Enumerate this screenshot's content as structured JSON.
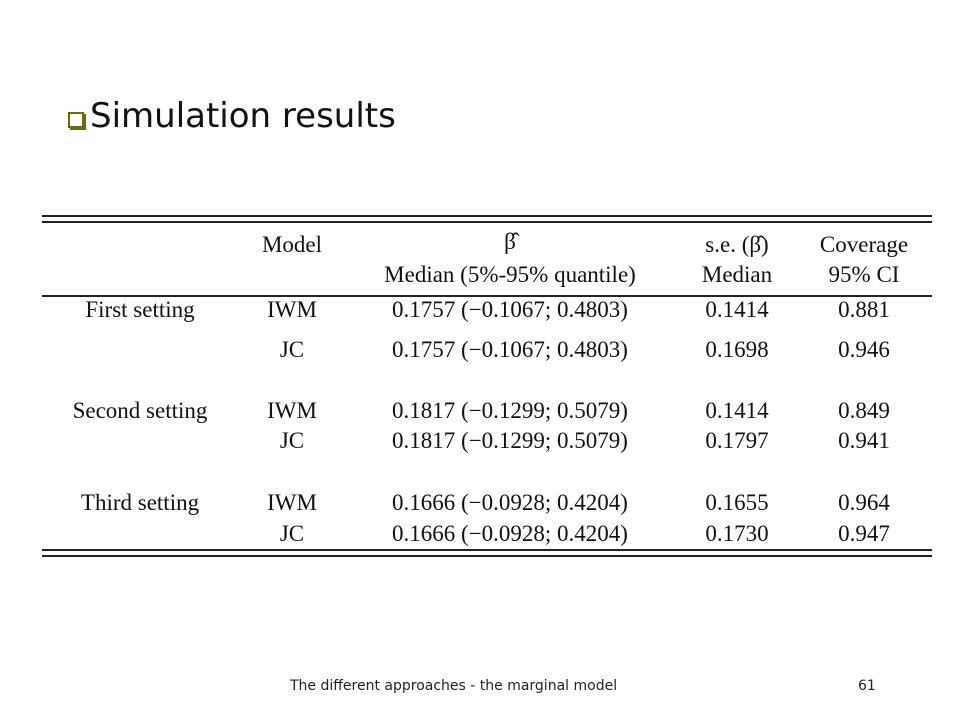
{
  "header": {
    "title": "Simulation results"
  },
  "table": {
    "header": {
      "model": "Model",
      "estimate": [
        "β̂",
        "Median (5%-95% quantile)"
      ],
      "se": [
        "s.e. (β̂)",
        "Median"
      ],
      "coverage": [
        "Coverage",
        "95% CI"
      ]
    },
    "rows": [
      [
        "First setting",
        "IWM",
        "0.1757 (−0.1067; 0.4803)",
        "0.1414",
        "0.881"
      ],
      [
        null,
        "JC",
        "0.1757 (−0.1067; 0.4803)",
        "0.1698",
        "0.946"
      ],
      [
        "Second setting",
        "IWM",
        "0.1817 (−0.1299; 0.5079)",
        "0.1414",
        "0.849"
      ],
      [
        null,
        "JC",
        "0.1817 (−0.1299; 0.5079)",
        "0.1797",
        "0.941"
      ],
      [
        "Third setting",
        "IWM",
        "0.1666 (−0.0928; 0.4204)",
        "0.1655",
        "0.964"
      ],
      [
        null,
        "JC",
        "0.1666 (−0.0928; 0.4204)",
        "0.1730",
        "0.947"
      ]
    ]
  },
  "footer": {
    "text": "The different approaches - the marginal model",
    "page": "61"
  }
}
